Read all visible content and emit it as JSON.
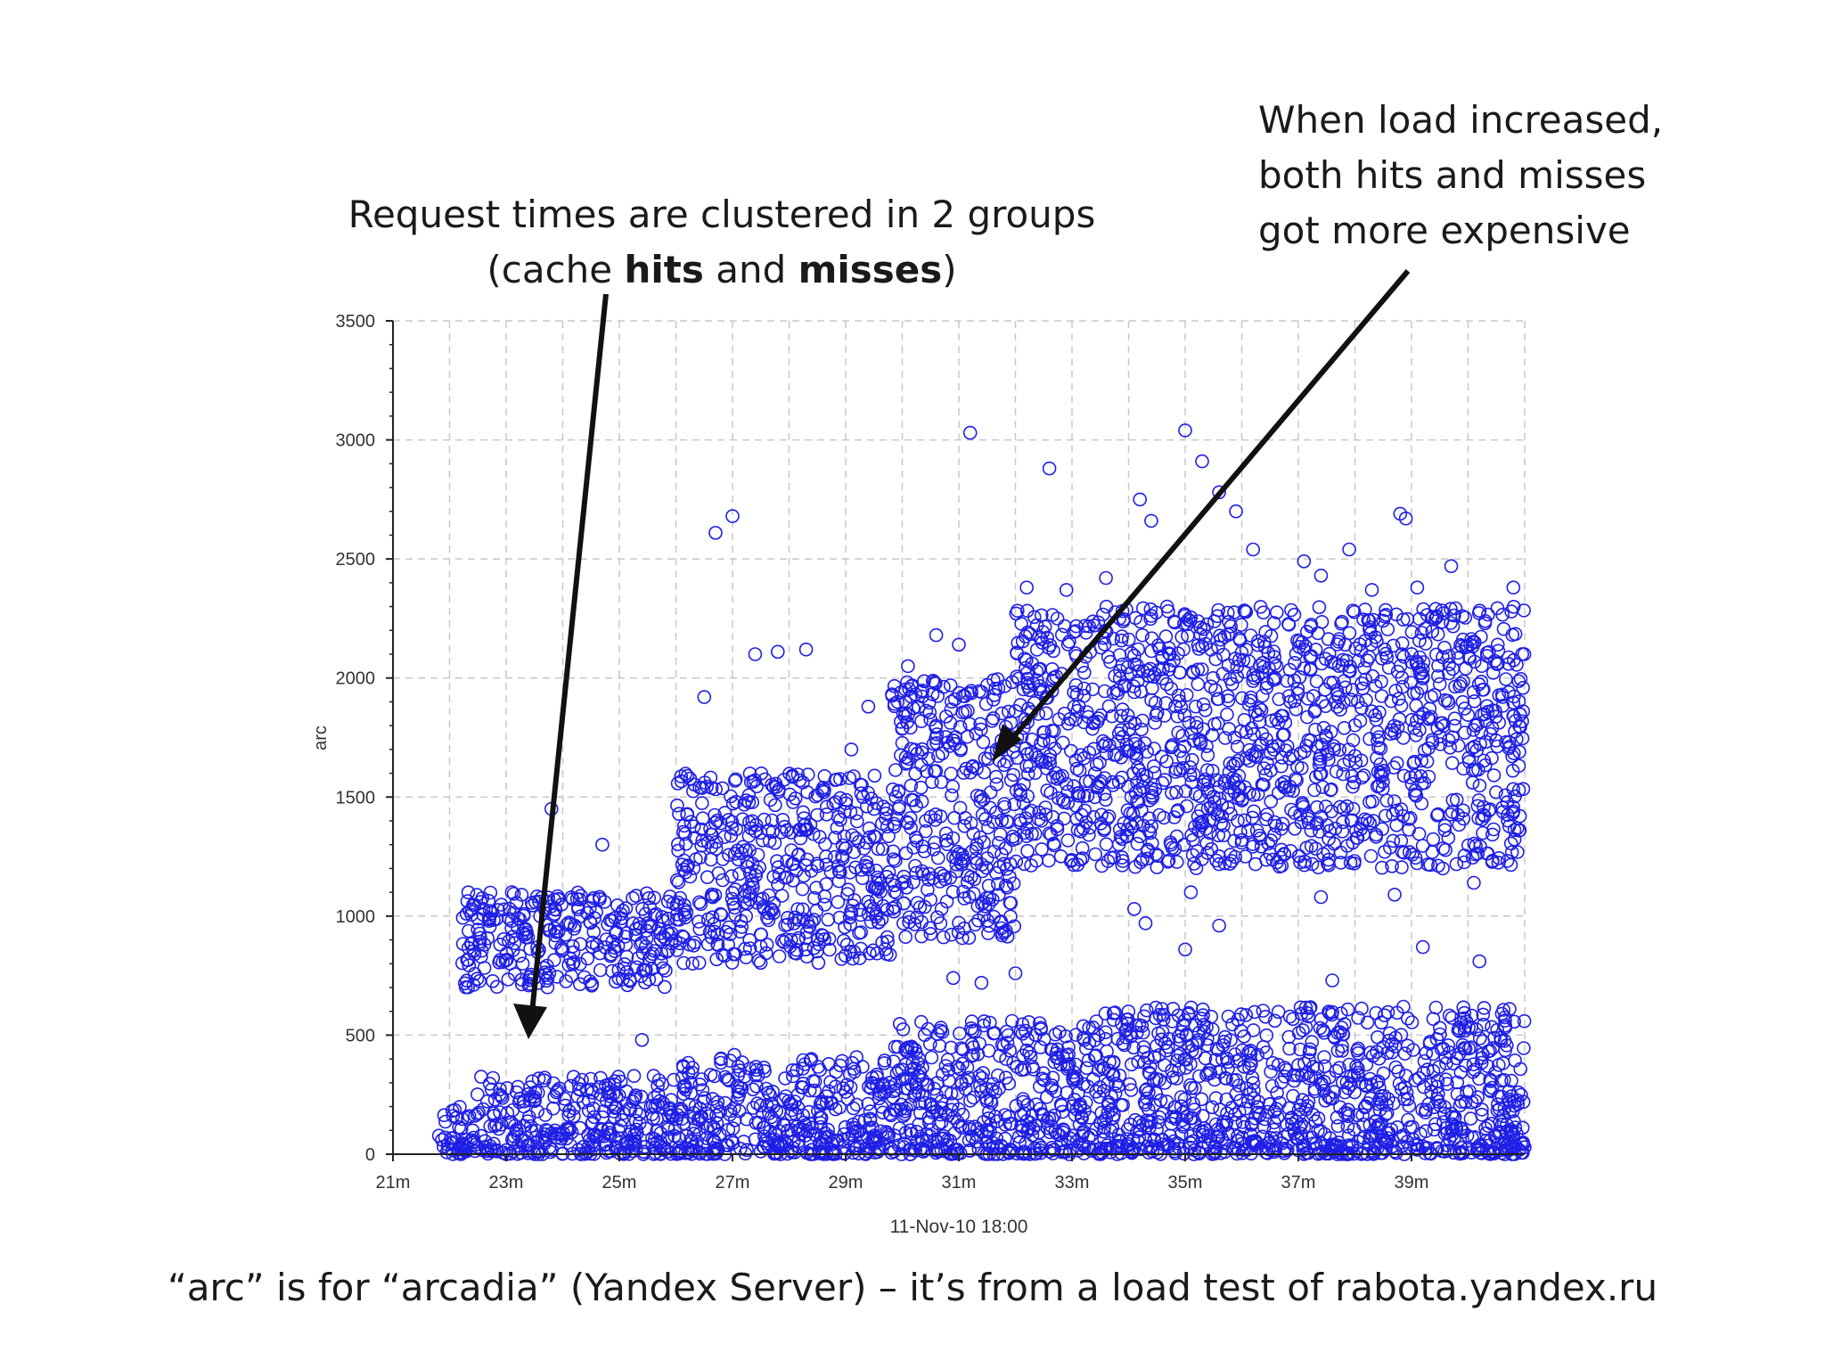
{
  "annotations": {
    "left_line1": "Request times  are clustered in 2 groups",
    "left_line2_pre": "(cache ",
    "left_line2_bold1": "hits",
    "left_line2_mid": " and ",
    "left_line2_bold2": "misses",
    "left_line2_post": ")",
    "right_line1": "When load increased,",
    "right_line2": "both hits and misses",
    "right_line3": "got more expensive"
  },
  "footer": "“arc” is for “arcadia” (Yandex Server) – it’s from a load test of rabota.yandex.ru",
  "colors": {
    "marker": "#1f1fe6",
    "grid": "#c8c8c8",
    "axis": "#222222",
    "arrow": "#111111"
  },
  "chart_data": {
    "type": "scatter",
    "title": "",
    "xlabel": "11-Nov-10 18:00",
    "ylabel": "arc",
    "x_unit": "minutes past 18:00",
    "xlim": [
      21,
      41
    ],
    "ylim": [
      0,
      3500
    ],
    "xticks": [
      21,
      23,
      25,
      27,
      29,
      31,
      33,
      35,
      37,
      39
    ],
    "xtick_labels": [
      "21m",
      "23m",
      "25m",
      "27m",
      "29m",
      "31m",
      "33m",
      "35m",
      "37m",
      "39m"
    ],
    "yticks": [
      0,
      500,
      1000,
      1500,
      2000,
      2500,
      3000,
      3500
    ],
    "ytick_labels": [
      "0",
      "500",
      "1000",
      "1500",
      "2000",
      "2500",
      "3000",
      "3500"
    ],
    "grid": true,
    "marker": "open-circle",
    "series": [
      {
        "name": "",
        "clusters": [
          {
            "x_start": 21.8,
            "x_end": 22.4,
            "y_low": 0,
            "y_high": 200
          },
          {
            "x_start": 22.4,
            "x_end": 26.0,
            "y_low": 0,
            "y_high": 330
          },
          {
            "x_start": 26.0,
            "x_end": 29.8,
            "y_low": 0,
            "y_high": 420
          },
          {
            "x_start": 29.8,
            "x_end": 33.0,
            "y_low": 0,
            "y_high": 560
          },
          {
            "x_start": 33.0,
            "x_end": 41.0,
            "y_low": 0,
            "y_high": 620
          },
          {
            "x_start": 22.2,
            "x_end": 26.0,
            "y_low": 700,
            "y_high": 1100
          },
          {
            "x_start": 26.0,
            "x_end": 29.8,
            "y_low": 800,
            "y_high": 1600
          },
          {
            "x_start": 29.8,
            "x_end": 32.0,
            "y_low": 900,
            "y_high": 2000
          },
          {
            "x_start": 32.0,
            "x_end": 41.0,
            "y_low": 1200,
            "y_high": 2300
          }
        ],
        "points": [
          {
            "x": 22.3,
            "y": 1010
          },
          {
            "x": 22.5,
            "y": 990
          },
          {
            "x": 22.7,
            "y": 980
          },
          {
            "x": 23.1,
            "y": 1100
          },
          {
            "x": 23.6,
            "y": 1000
          },
          {
            "x": 23.8,
            "y": 1450
          },
          {
            "x": 24.7,
            "y": 1300
          },
          {
            "x": 25.4,
            "y": 480
          },
          {
            "x": 26.5,
            "y": 1920
          },
          {
            "x": 26.7,
            "y": 2610
          },
          {
            "x": 27.0,
            "y": 2680
          },
          {
            "x": 27.4,
            "y": 2100
          },
          {
            "x": 27.8,
            "y": 2110
          },
          {
            "x": 28.3,
            "y": 2120
          },
          {
            "x": 29.1,
            "y": 1700
          },
          {
            "x": 29.4,
            "y": 1880
          },
          {
            "x": 30.1,
            "y": 2050
          },
          {
            "x": 30.6,
            "y": 2180
          },
          {
            "x": 31.2,
            "y": 3030
          },
          {
            "x": 31.0,
            "y": 2140
          },
          {
            "x": 32.2,
            "y": 2380
          },
          {
            "x": 32.6,
            "y": 2880
          },
          {
            "x": 32.9,
            "y": 2370
          },
          {
            "x": 33.6,
            "y": 2420
          },
          {
            "x": 34.2,
            "y": 2750
          },
          {
            "x": 34.4,
            "y": 2660
          },
          {
            "x": 35.0,
            "y": 3040
          },
          {
            "x": 35.3,
            "y": 2910
          },
          {
            "x": 35.6,
            "y": 2780
          },
          {
            "x": 35.9,
            "y": 2700
          },
          {
            "x": 36.2,
            "y": 2540
          },
          {
            "x": 37.1,
            "y": 2490
          },
          {
            "x": 37.4,
            "y": 2430
          },
          {
            "x": 37.9,
            "y": 2540
          },
          {
            "x": 38.3,
            "y": 2370
          },
          {
            "x": 38.8,
            "y": 2690
          },
          {
            "x": 38.9,
            "y": 2670
          },
          {
            "x": 39.1,
            "y": 2380
          },
          {
            "x": 39.7,
            "y": 2470
          },
          {
            "x": 39.9,
            "y": 2260
          },
          {
            "x": 40.3,
            "y": 2230
          },
          {
            "x": 40.8,
            "y": 2380
          },
          {
            "x": 34.3,
            "y": 970
          },
          {
            "x": 37.4,
            "y": 1080
          },
          {
            "x": 34.1,
            "y": 1030
          },
          {
            "x": 35.1,
            "y": 1100
          },
          {
            "x": 38.7,
            "y": 1090
          },
          {
            "x": 40.1,
            "y": 1140
          },
          {
            "x": 30.9,
            "y": 740
          },
          {
            "x": 31.4,
            "y": 720
          },
          {
            "x": 32.0,
            "y": 760
          },
          {
            "x": 35.0,
            "y": 860
          },
          {
            "x": 35.6,
            "y": 960
          },
          {
            "x": 37.6,
            "y": 730
          },
          {
            "x": 39.2,
            "y": 870
          },
          {
            "x": 40.2,
            "y": 810
          }
        ]
      }
    ]
  }
}
